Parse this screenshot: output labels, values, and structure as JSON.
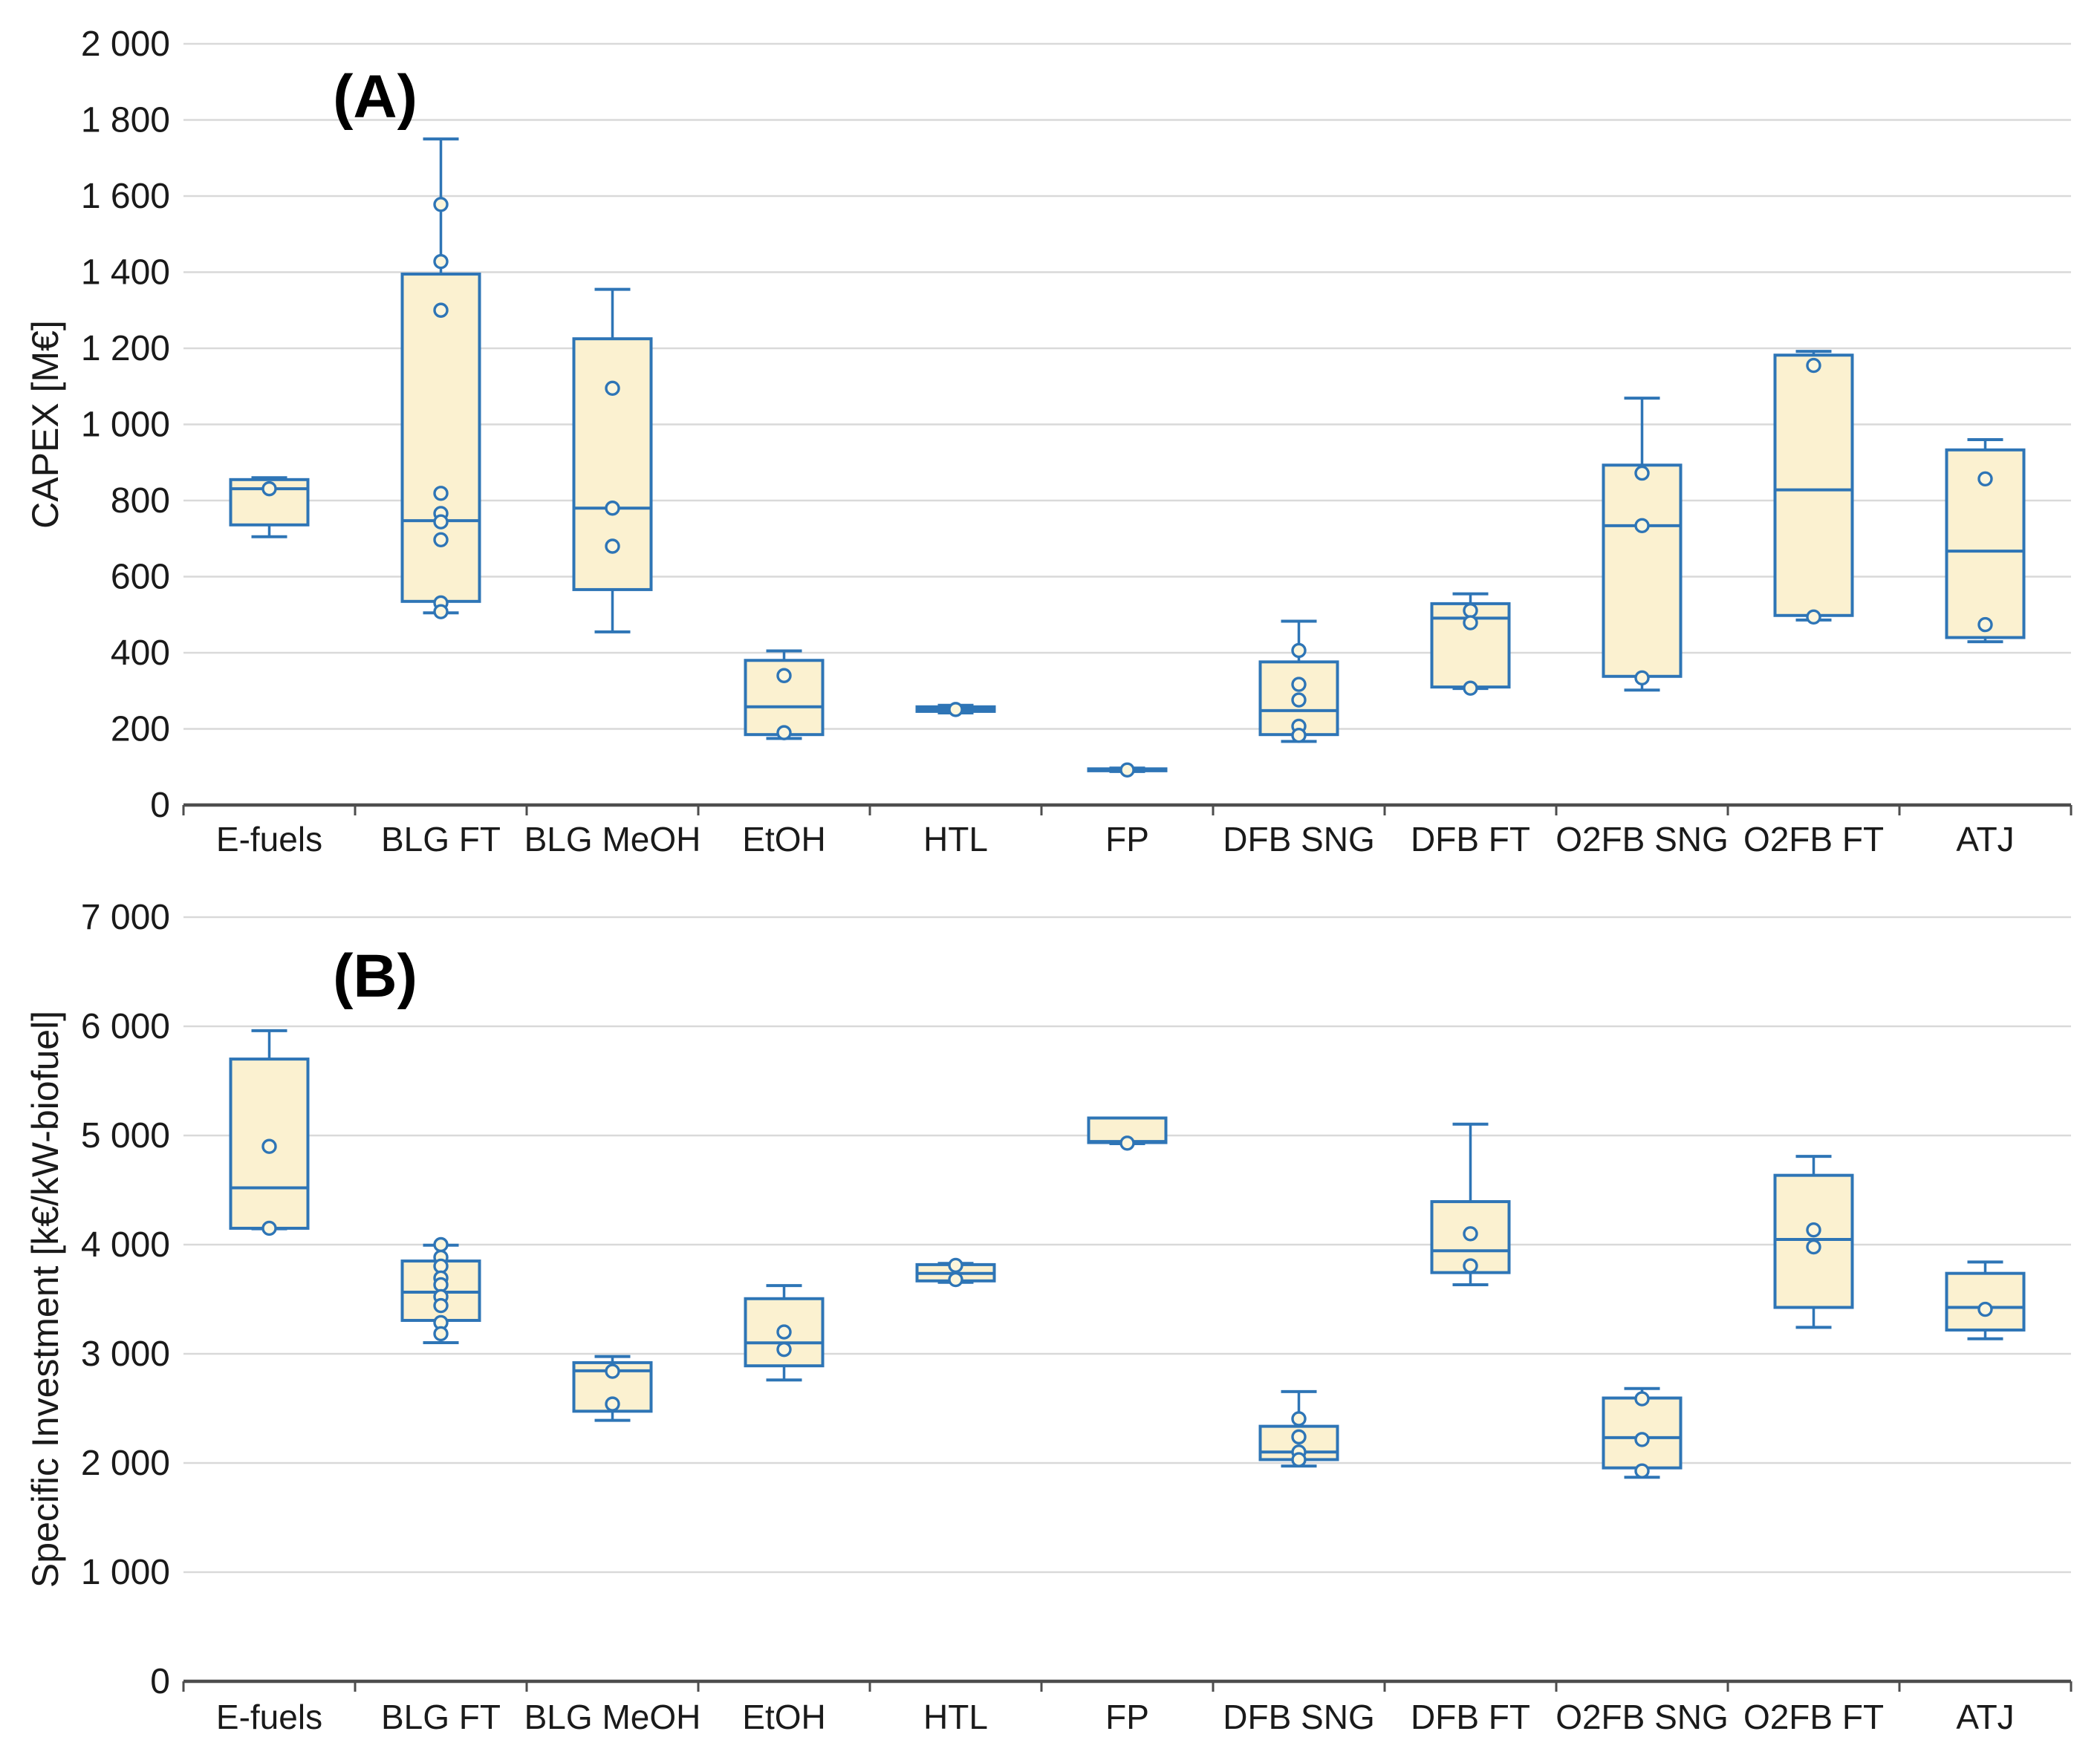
{
  "figure": {
    "panel_a_letter": "(A)",
    "panel_b_letter": "(B)"
  },
  "colors": {
    "box_fill": "#FBF1D0",
    "box_stroke": "#2E75B6",
    "whisker_stroke": "#2E75B6",
    "marker_fill": "#FCF6DC",
    "marker_stroke": "#2E75B6",
    "gridline": "#D9D9D9",
    "axis_line": "#4D4D4D",
    "tick_mark": "#4D4D4D",
    "text": "#1A1A1A",
    "background": "#FFFFFF"
  },
  "chart_data": [
    {
      "type": "box",
      "panel": "A",
      "panel_letter": "(A)",
      "title": "",
      "xlabel": "",
      "ylabel": "CAPEX [M€]",
      "ylim": [
        0,
        2000
      ],
      "ytick_step": 200,
      "grid": true,
      "legend_position": "none",
      "yticks": [
        {
          "label": "2 000",
          "value": 2000
        },
        {
          "label": "1 800",
          "value": 1800
        },
        {
          "label": "1 600",
          "value": 1600
        },
        {
          "label": "1 400",
          "value": 1400
        },
        {
          "label": "1 200",
          "value": 1200
        },
        {
          "label": "1 000",
          "value": 1000
        },
        {
          "label": "800",
          "value": 800
        },
        {
          "label": "600",
          "value": 600
        },
        {
          "label": "400",
          "value": 400
        },
        {
          "label": "200",
          "value": 200
        },
        {
          "label": "0",
          "value": 0
        }
      ],
      "categories": [
        "E-fuels",
        "BLG FT",
        "BLG MeOH",
        "EtOH",
        "HTL",
        "FP",
        "DFB SNG",
        "DFB FT",
        "O2FB SNG",
        "O2FB FT",
        "ATJ"
      ],
      "boxes": [
        {
          "category": "E-fuels",
          "min": 705,
          "q1": 736,
          "median": 831,
          "q3": 855,
          "max": 860,
          "points": [
            831
          ]
        },
        {
          "category": "BLG FT",
          "min": 505,
          "q1": 535,
          "median": 747,
          "q3": 1395,
          "max": 1750,
          "points": [
            1578,
            1428,
            1300,
            819,
            766,
            744,
            697,
            531,
            508
          ]
        },
        {
          "category": "BLG MeOH",
          "min": 455,
          "q1": 566,
          "median": 780,
          "q3": 1225,
          "max": 1355,
          "points": [
            1095,
            780,
            680
          ]
        },
        {
          "category": "EtOH",
          "min": 175,
          "q1": 185,
          "median": 258,
          "q3": 380,
          "max": 405,
          "points": [
            340,
            190
          ]
        },
        {
          "category": "HTL",
          "min": 242,
          "q1": 246,
          "median": 252,
          "q3": 258,
          "max": 262,
          "points": [
            251
          ]
        },
        {
          "category": "FP",
          "min": 88,
          "q1": 90,
          "median": 92,
          "q3": 95,
          "max": 97,
          "points": [
            92
          ]
        },
        {
          "category": "DFB SNG",
          "min": 167,
          "q1": 185,
          "median": 248,
          "q3": 376,
          "max": 483,
          "points": [
            406,
            317,
            276,
            207,
            183
          ]
        },
        {
          "category": "DFB FT",
          "min": 306,
          "q1": 310,
          "median": 491,
          "q3": 529,
          "max": 555,
          "points": [
            511,
            479,
            307
          ]
        },
        {
          "category": "O2FB SNG",
          "min": 302,
          "q1": 338,
          "median": 734,
          "q3": 893,
          "max": 1069,
          "points": [
            872,
            734,
            334
          ]
        },
        {
          "category": "O2FB FT",
          "min": 486,
          "q1": 498,
          "median": 828,
          "q3": 1182,
          "max": 1192,
          "points": [
            1155,
            494
          ]
        },
        {
          "category": "ATJ",
          "min": 429,
          "q1": 440,
          "median": 667,
          "q3": 933,
          "max": 960,
          "points": [
            857,
            474
          ]
        }
      ]
    },
    {
      "type": "box",
      "panel": "B",
      "panel_letter": "(B)",
      "title": "",
      "xlabel": "",
      "ylabel": "Specific Investment [k€/kW-biofuel]",
      "ylim": [
        0,
        7000
      ],
      "ytick_step": 1000,
      "grid": true,
      "legend_position": "none",
      "yticks": [
        {
          "label": "7 000",
          "value": 7000
        },
        {
          "label": "6 000",
          "value": 6000
        },
        {
          "label": "5 000",
          "value": 5000
        },
        {
          "label": "4 000",
          "value": 4000
        },
        {
          "label": "3 000",
          "value": 3000
        },
        {
          "label": "2 000",
          "value": 2000
        },
        {
          "label": "1 000",
          "value": 1000
        },
        {
          "label": "0",
          "value": 0
        }
      ],
      "categories": [
        "E-fuels",
        "BLG FT",
        "BLG MeOH",
        "EtOH",
        "HTL",
        "FP",
        "DFB SNG",
        "DFB FT",
        "O2FB SNG",
        "O2FB FT",
        "ATJ"
      ],
      "boxes": [
        {
          "category": "E-fuels",
          "min": 4145,
          "q1": 4150,
          "median": 4520,
          "q3": 5700,
          "max": 5960,
          "points": [
            4900,
            4150
          ]
        },
        {
          "category": "BLG FT",
          "min": 3102,
          "q1": 3306,
          "median": 3565,
          "q3": 3850,
          "max": 3995,
          "points": [
            4000,
            3884,
            3803,
            3694,
            3633,
            3524,
            3442,
            3286,
            3184
          ]
        },
        {
          "category": "BLG MeOH",
          "min": 2390,
          "q1": 2474,
          "median": 2844,
          "q3": 2919,
          "max": 2975,
          "points": [
            2840,
            2540
          ]
        },
        {
          "category": "EtOH",
          "min": 2760,
          "q1": 2890,
          "median": 3100,
          "q3": 3505,
          "max": 3625,
          "points": [
            3200,
            3040
          ]
        },
        {
          "category": "HTL",
          "min": 3655,
          "q1": 3668,
          "median": 3736,
          "q3": 3817,
          "max": 3828,
          "points": [
            3810,
            3680
          ]
        },
        {
          "category": "FP",
          "min": 4925,
          "q1": 4935,
          "median": 4945,
          "q3": 5160,
          "max": 5160,
          "points": [
            4930
          ]
        },
        {
          "category": "DFB SNG",
          "min": 1972,
          "q1": 2031,
          "median": 2100,
          "q3": 2336,
          "max": 2654,
          "points": [
            2405,
            2239,
            2100,
            2030
          ]
        },
        {
          "category": "DFB FT",
          "min": 3633,
          "q1": 3744,
          "median": 3944,
          "q3": 4394,
          "max": 5104,
          "points": [
            4100,
            3806
          ]
        },
        {
          "category": "O2FB SNG",
          "min": 1869,
          "q1": 1955,
          "median": 2232,
          "q3": 2595,
          "max": 2682,
          "points": [
            2588,
            2215,
            1927
          ]
        },
        {
          "category": "O2FB FT",
          "min": 3242,
          "q1": 3425,
          "median": 4048,
          "q3": 4635,
          "max": 4809,
          "points": [
            4135,
            3979
          ]
        },
        {
          "category": "ATJ",
          "min": 3138,
          "q1": 3218,
          "median": 3425,
          "q3": 3737,
          "max": 3841,
          "points": [
            3408
          ]
        }
      ]
    }
  ]
}
